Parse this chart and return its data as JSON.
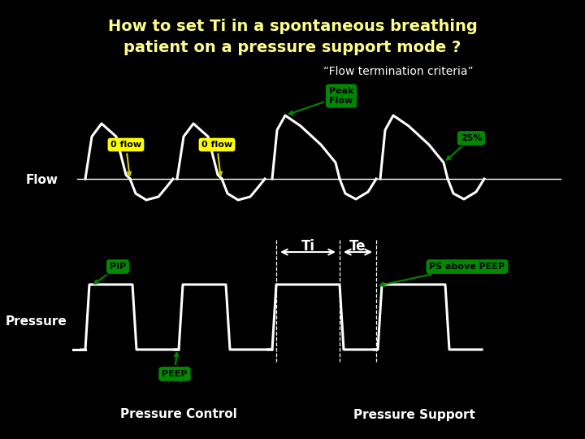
{
  "title_line1": "How to set Ti in a spontaneous breathing",
  "title_line2": "patient on a pressure support mode ?",
  "title_color": "#ffff88",
  "bg_color": "#000000",
  "flow_label": "Flow",
  "pressure_label": "Pressure",
  "subtitle": "“Flow termination criteria”",
  "subtitle_color": "#ffffff",
  "label_0flow_1": "0 flow",
  "label_0flow_2": "0 flow",
  "label_peak_flow": "Peak\nFlow",
  "label_25pct": "25%",
  "label_pip": "PIP",
  "label_peep": "PEEP",
  "label_ti": "Ti",
  "label_te": "Te",
  "label_ps_above_peep": "PS above PEEP",
  "label_pressure_control": "Pressure Control",
  "label_pressure_support": "Pressure Support",
  "yellow_bg": "#ffff00",
  "green_bg": "#008800",
  "white": "#ffffff",
  "black": "#000000",
  "line_color": "#ffffff",
  "line_width": 2.2
}
